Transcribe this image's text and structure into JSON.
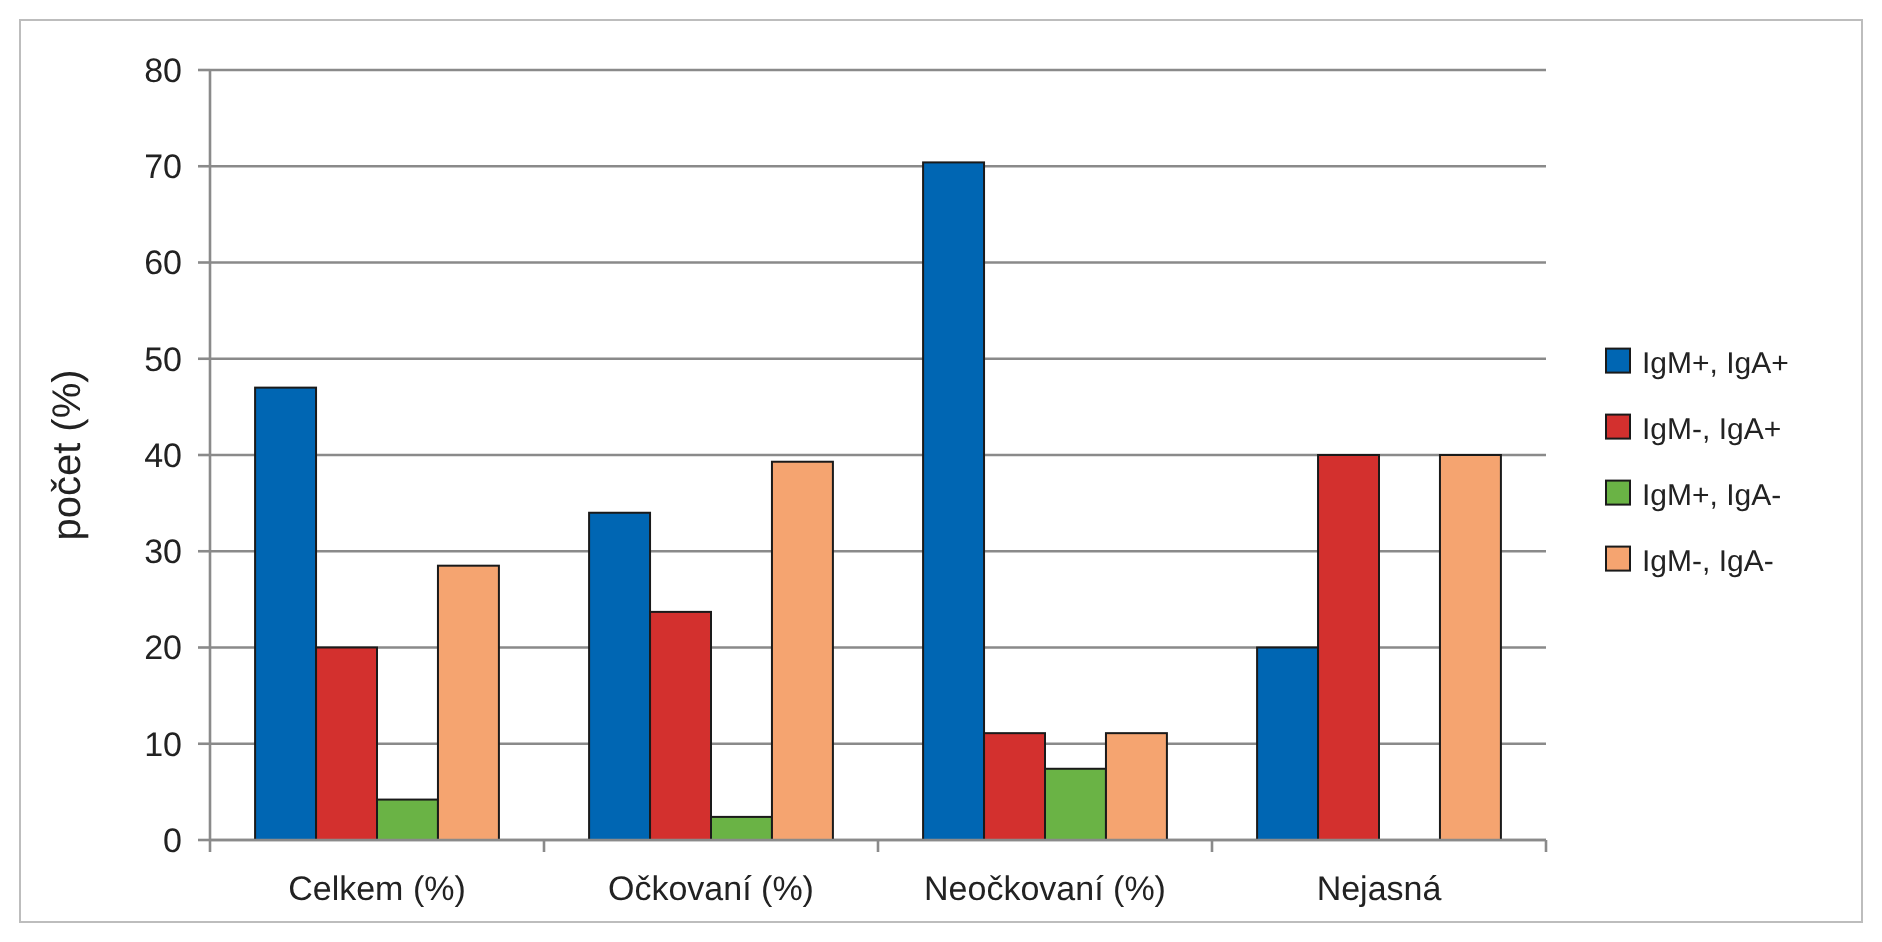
{
  "chart_data": {
    "type": "bar",
    "ylabel": "počet (%)",
    "categories": [
      "Celkem (%)",
      "Očkovaní (%)",
      "Neočkovaní (%)",
      "Nejasná"
    ],
    "series": [
      {
        "name": "IgM+, IgA+",
        "color": "#0066b3",
        "values": [
          47,
          34,
          70.4,
          20
        ]
      },
      {
        "name": "IgM-, IgA+",
        "color": "#d3302e",
        "values": [
          20,
          23.7,
          11.1,
          40
        ]
      },
      {
        "name": "IgM+, IgA-",
        "color": "#6ab345",
        "values": [
          4.2,
          2.4,
          7.4,
          null
        ]
      },
      {
        "name": "IgM-, IgA-",
        "color": "#f5a470",
        "values": [
          28.5,
          39.3,
          11.1,
          40
        ]
      }
    ],
    "ylim": [
      0,
      80
    ],
    "yticks": [
      0,
      10,
      20,
      30,
      40,
      50,
      60,
      70,
      80
    ],
    "grid": "y",
    "legend": "right"
  }
}
